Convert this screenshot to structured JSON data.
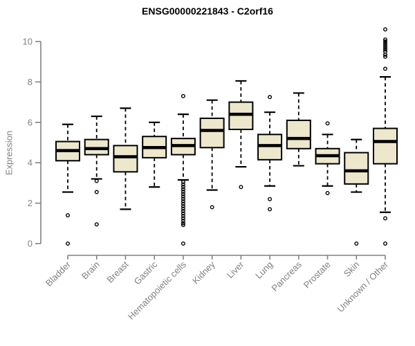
{
  "chart_data": {
    "type": "boxplot",
    "title": "ENSG00000221843 - C2orf16",
    "ylabel": "Expression",
    "xlabel": "",
    "ylim": [
      0,
      10
    ],
    "yticks": [
      0,
      2,
      4,
      6,
      8,
      10
    ],
    "grid": false,
    "legend_position": "none",
    "colors": {
      "box_fill": "#ECE7CD",
      "box_stroke": "#000000",
      "median": "#000000",
      "axis": "#808080",
      "title": "#000000"
    },
    "categories": [
      "Bladder",
      "Brain",
      "Breast",
      "Gastric",
      "Hematopoietic cells",
      "Kidney",
      "Liver",
      "Lung",
      "Pancreas",
      "Prostate",
      "Skin",
      "Unknown / Other"
    ],
    "series": [
      {
        "name": "Bladder",
        "whisker_low": 2.55,
        "q1": 4.1,
        "median": 4.6,
        "q3": 5.05,
        "whisker_high": 5.9,
        "outliers": [
          1.4,
          0
        ]
      },
      {
        "name": "Brain",
        "whisker_low": 3.2,
        "q1": 4.4,
        "median": 4.7,
        "q3": 5.15,
        "whisker_high": 6.3,
        "outliers": [
          3.1,
          2.55,
          0.95
        ]
      },
      {
        "name": "Breast",
        "whisker_low": 1.7,
        "q1": 3.55,
        "median": 4.3,
        "q3": 4.85,
        "whisker_high": 6.7,
        "outliers": []
      },
      {
        "name": "Gastric",
        "whisker_low": 2.8,
        "q1": 4.25,
        "median": 4.75,
        "q3": 5.3,
        "whisker_high": 6.0,
        "outliers": []
      },
      {
        "name": "Hematopoietic cells",
        "whisker_low": 3.15,
        "q1": 4.4,
        "median": 4.85,
        "q3": 5.2,
        "whisker_high": 6.4,
        "outliers": [
          7.3,
          3.05,
          2.93,
          2.81,
          2.69,
          2.57,
          2.45,
          2.33,
          2.21,
          2.09,
          1.97,
          1.85,
          1.73,
          1.61,
          1.49,
          1.37,
          1.25,
          1.13,
          1.01,
          0.92,
          0
        ]
      },
      {
        "name": "Kidney",
        "whisker_low": 2.65,
        "q1": 4.75,
        "median": 5.6,
        "q3": 6.2,
        "whisker_high": 7.1,
        "outliers": [
          1.8
        ]
      },
      {
        "name": "Liver",
        "whisker_low": 3.8,
        "q1": 5.65,
        "median": 6.4,
        "q3": 7.0,
        "whisker_high": 8.05,
        "outliers": [
          2.8
        ]
      },
      {
        "name": "Lung",
        "whisker_low": 2.85,
        "q1": 4.15,
        "median": 4.85,
        "q3": 5.4,
        "whisker_high": 6.5,
        "outliers": [
          7.25,
          2.2,
          1.7
        ]
      },
      {
        "name": "Pancreas",
        "whisker_low": 3.85,
        "q1": 4.7,
        "median": 5.2,
        "q3": 6.1,
        "whisker_high": 7.45,
        "outliers": []
      },
      {
        "name": "Prostate",
        "whisker_low": 2.85,
        "q1": 3.95,
        "median": 4.35,
        "q3": 4.7,
        "whisker_high": 5.4,
        "outliers": [
          5.95,
          2.5
        ]
      },
      {
        "name": "Skin",
        "whisker_low": 2.55,
        "q1": 2.95,
        "median": 3.6,
        "q3": 4.5,
        "whisker_high": 5.15,
        "outliers": [
          0
        ]
      },
      {
        "name": "Unknown / Other",
        "whisker_low": 1.55,
        "q1": 3.95,
        "median": 5.05,
        "q3": 5.7,
        "whisker_high": 8.25,
        "outliers": [
          10.6,
          10.1,
          10.0,
          9.9,
          9.8,
          9.7,
          9.6,
          9.5,
          9.35,
          9.25,
          8.65,
          1.25,
          0
        ]
      }
    ]
  }
}
